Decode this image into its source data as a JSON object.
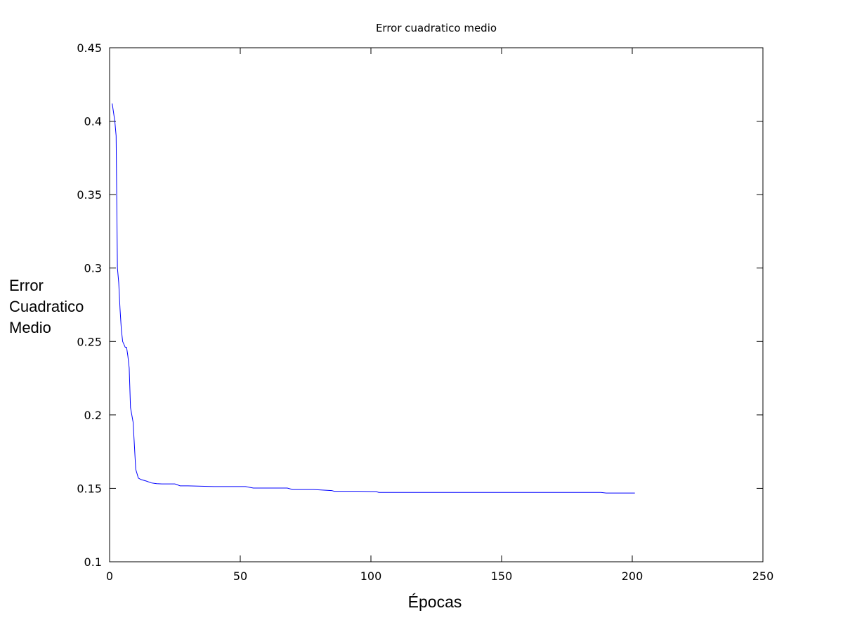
{
  "chart_data": {
    "type": "line",
    "title": "Error cuadratico medio",
    "xlabel": "Épocas",
    "ylabel_lines": [
      "Error",
      "Cuadratico",
      "Medio"
    ],
    "xlim": [
      0,
      250
    ],
    "ylim": [
      0.1,
      0.45
    ],
    "xticks": [
      0,
      50,
      100,
      150,
      200,
      250
    ],
    "xtick_labels": [
      "0",
      "50",
      "100",
      "150",
      "200",
      "250"
    ],
    "yticks": [
      0.1,
      0.15,
      0.2,
      0.25,
      0.3,
      0.35,
      0.4,
      0.45
    ],
    "ytick_labels": [
      "0.1",
      "0.15",
      "0.2",
      "0.25",
      "0.3",
      "0.35",
      "0.4",
      "0.45"
    ],
    "grid": false,
    "legend": "none",
    "series": [
      {
        "color": "#0000ff",
        "x": [
          1,
          2,
          2.5,
          3,
          3.5,
          4,
          4.5,
          5,
          6,
          6.5,
          7,
          7.5,
          8,
          9,
          10,
          10.5,
          11,
          12,
          14,
          16,
          18,
          20,
          25,
          27,
          30,
          40,
          52,
          55,
          68,
          70,
          78,
          85,
          86,
          95,
          100,
          102,
          103,
          120,
          150,
          188,
          190,
          201
        ],
        "y": [
          0.412,
          0.4,
          0.39,
          0.3,
          0.29,
          0.272,
          0.258,
          0.25,
          0.246,
          0.246,
          0.24,
          0.232,
          0.205,
          0.195,
          0.163,
          0.16,
          0.157,
          0.156,
          0.155,
          0.1537,
          0.1532,
          0.153,
          0.153,
          0.1517,
          0.1517,
          0.1512,
          0.1512,
          0.1502,
          0.1502,
          0.1492,
          0.1492,
          0.1485,
          0.148,
          0.148,
          0.1478,
          0.1478,
          0.1472,
          0.1472,
          0.1472,
          0.1472,
          0.1468,
          0.1468
        ]
      }
    ]
  }
}
